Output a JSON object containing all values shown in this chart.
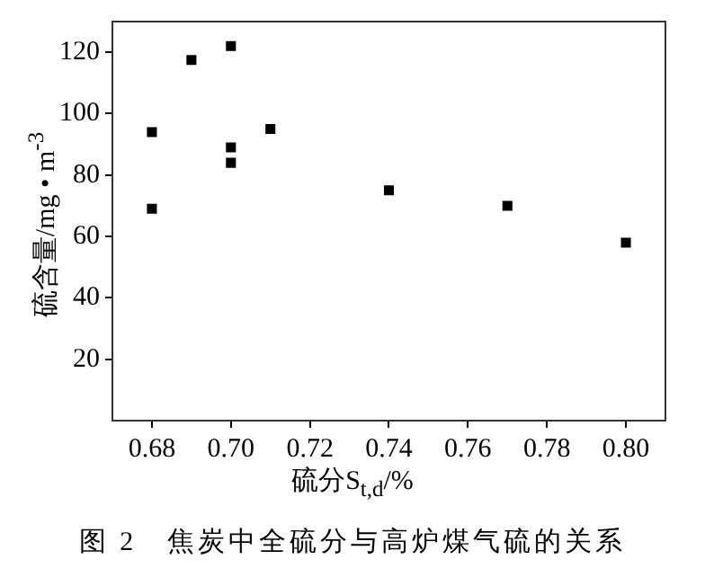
{
  "chart_data": {
    "type": "scatter",
    "xlabel": "硫分S$_{t,d}$/%",
    "ylabel": "硫含量/mg • m$^{-3}$",
    "annotations": [
      "图 2　焦炭中全硫分与高炉煤气硫的关系"
    ],
    "x": [
      0.68,
      0.68,
      0.69,
      0.7,
      0.7,
      0.7,
      0.71,
      0.74,
      0.77,
      0.8
    ],
    "series": [
      {
        "color": "#000000",
        "values": [
          94,
          69,
          117.5,
          122,
          89,
          84,
          95,
          75,
          70,
          58
        ]
      }
    ],
    "xlim": [
      0.67,
      0.81
    ],
    "xticks": [
      {
        "value": 0.68,
        "label": "0.68"
      },
      {
        "value": 0.7,
        "label": "0.70"
      },
      {
        "value": 0.72,
        "label": "0.72"
      },
      {
        "value": 0.74,
        "label": "0.74"
      },
      {
        "value": 0.76,
        "label": "0.76"
      },
      {
        "value": 0.78,
        "label": "0.78"
      },
      {
        "value": 0.8,
        "label": "0.80"
      }
    ],
    "ylim": [
      0,
      130
    ],
    "yticks": [
      20,
      40,
      60,
      80,
      100,
      120
    ],
    "grid": false,
    "legend": false,
    "marker": "square"
  }
}
